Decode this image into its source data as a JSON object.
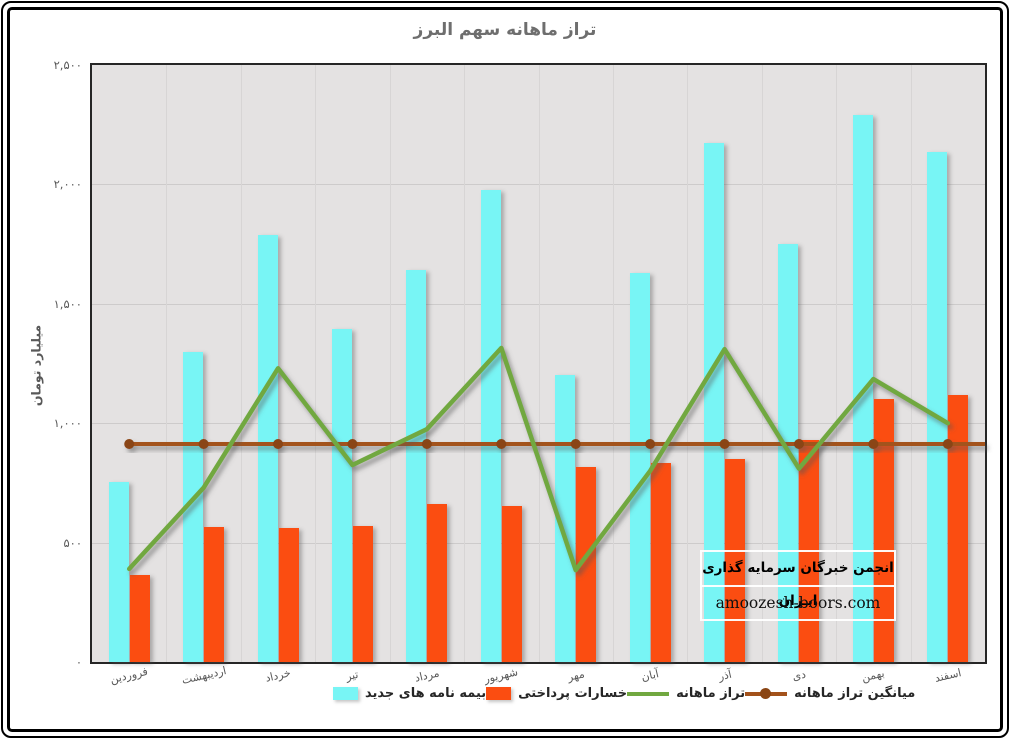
{
  "title": "تراز ماهانه سهم البرز",
  "y_axis": {
    "title": "میلیارد تومان",
    "tick_labels": [
      "۲,۵۰۰",
      "۲,۰۰۰",
      "۱,۵۰۰",
      "۱,۰۰۰",
      "۵۰۰",
      "۰"
    ]
  },
  "watermark": {
    "line1": "انجمن خبرگان سرمایه گذاری ایـران",
    "line2": "amoozesh-boors.com"
  },
  "legend": [
    {
      "label": "بیمه نامه های جدید",
      "marker": "square",
      "color": "#78F5F5"
    },
    {
      "label": "خسارات پرداختی",
      "marker": "square",
      "color": "#FB4D11"
    },
    {
      "label": "تراز ماهانه",
      "marker": "line",
      "color": "#71A840"
    },
    {
      "label": "میانگین تراز ماهانه",
      "marker": "line-dot",
      "color": "#A3521B"
    }
  ],
  "colors": {
    "plot_background": "#E4E2E2",
    "gridline": "#CDCBCB",
    "vertical_gridline": "#D7D5D5",
    "plot_border": "#262626",
    "title_text": "#6E6E6E",
    "tick_text": "#595959",
    "legend_text": "#262626",
    "average_marker": "#8A4513"
  },
  "chart_data": {
    "type": "bar",
    "title": "تراز ماهانه سهم البرز",
    "xlabel": "",
    "ylabel": "میلیارد تومان",
    "ylim": [
      0,
      2500
    ],
    "ytick_step": 500,
    "grid": true,
    "legend_position": "bottom",
    "categories": [
      "فروردین",
      "اردیبهشت",
      "خرداد",
      "تیر",
      "مرداد",
      "شهریور",
      "مهر",
      "آبان",
      "آذر",
      "دی",
      "بهمن",
      "اسفند"
    ],
    "series": [
      {
        "name": "بیمه نامه های جدید",
        "type": "bar",
        "color": "#78F5F5",
        "values": [
          755,
          1300,
          1790,
          1395,
          1640,
          1975,
          1200,
          1630,
          2175,
          1750,
          2290,
          2135
        ]
      },
      {
        "name": "خسارات پرداختی",
        "type": "bar",
        "color": "#FB4D11",
        "values": [
          365,
          565,
          560,
          570,
          660,
          655,
          815,
          835,
          850,
          930,
          1100,
          1120
        ]
      },
      {
        "name": "تراز ماهانه",
        "type": "line",
        "color": "#71A840",
        "values": [
          390,
          730,
          1230,
          825,
          975,
          1315,
          385,
          800,
          1310,
          810,
          1185,
          1000
        ]
      },
      {
        "name": "میانگین تراز ماهانه",
        "type": "line-marker",
        "color": "#A3521B",
        "marker_color": "#8A4513",
        "value": 913
      }
    ]
  }
}
